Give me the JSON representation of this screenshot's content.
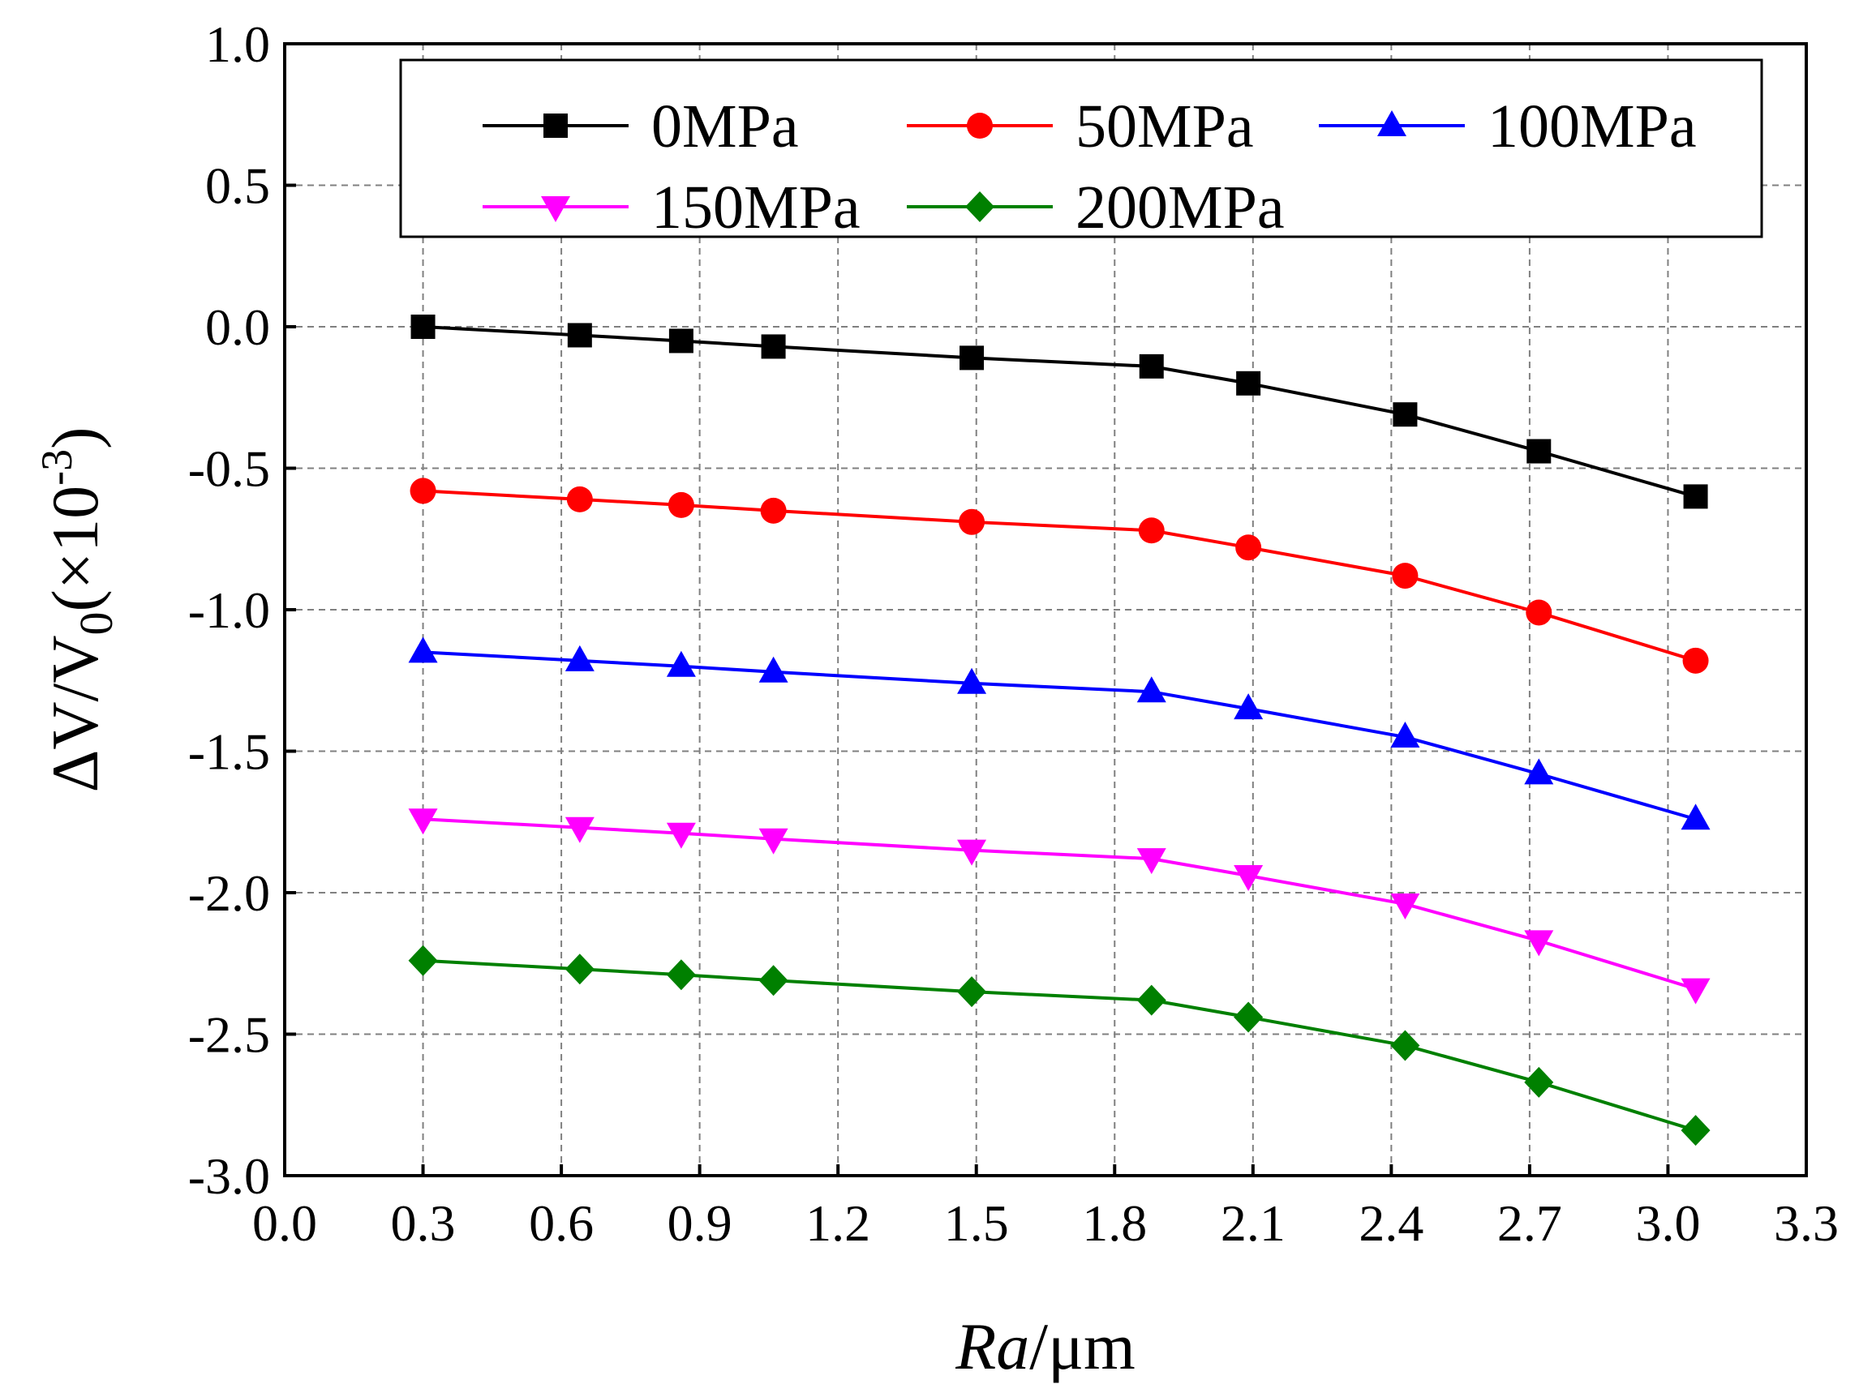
{
  "chart_data": {
    "type": "line",
    "title": "",
    "xlabel_italic": "Ra",
    "xlabel_unit": "/μm",
    "ylabel_main": "ΔV/V",
    "ylabel_sub": "0",
    "ylabel_paren_open": "(×10",
    "ylabel_sup": "-3",
    "ylabel_paren_close": ")",
    "xlim": [
      0.0,
      3.3
    ],
    "ylim": [
      -3.0,
      1.0
    ],
    "xticks": [
      "0.0",
      "0.3",
      "0.6",
      "0.9",
      "1.2",
      "1.5",
      "1.8",
      "2.1",
      "2.4",
      "2.7",
      "3.0",
      "3.3"
    ],
    "yticks": [
      "1.0",
      "0.5",
      "0.0",
      "-0.5",
      "-1.0",
      "-1.5",
      "-2.0",
      "-2.5",
      "-3.0"
    ],
    "grid": true,
    "legend_position": "top",
    "x": [
      0.3,
      0.64,
      0.86,
      1.06,
      1.49,
      1.88,
      2.09,
      2.43,
      2.72,
      3.06
    ],
    "series": [
      {
        "name": "0MPa",
        "color": "#000000",
        "marker": "square",
        "values": [
          0.0,
          -0.03,
          -0.05,
          -0.07,
          -0.11,
          -0.14,
          -0.2,
          -0.31,
          -0.44,
          -0.6
        ]
      },
      {
        "name": "50MPa",
        "color": "#ff0000",
        "marker": "circle",
        "values": [
          -0.58,
          -0.61,
          -0.63,
          -0.65,
          -0.69,
          -0.72,
          -0.78,
          -0.88,
          -1.01,
          -1.18
        ]
      },
      {
        "name": "100MPa",
        "color": "#0000ff",
        "marker": "triangle-up",
        "values": [
          -1.15,
          -1.18,
          -1.2,
          -1.22,
          -1.26,
          -1.29,
          -1.35,
          -1.45,
          -1.58,
          -1.74
        ]
      },
      {
        "name": "150MPa",
        "color": "#ff00ff",
        "marker": "triangle-down",
        "values": [
          -1.74,
          -1.77,
          -1.79,
          -1.81,
          -1.85,
          -1.88,
          -1.94,
          -2.04,
          -2.17,
          -2.34
        ]
      },
      {
        "name": "200MPa",
        "color": "#008000",
        "marker": "diamond",
        "values": [
          -2.24,
          -2.27,
          -2.29,
          -2.31,
          -2.35,
          -2.38,
          -2.44,
          -2.54,
          -2.67,
          -2.84
        ]
      }
    ]
  }
}
